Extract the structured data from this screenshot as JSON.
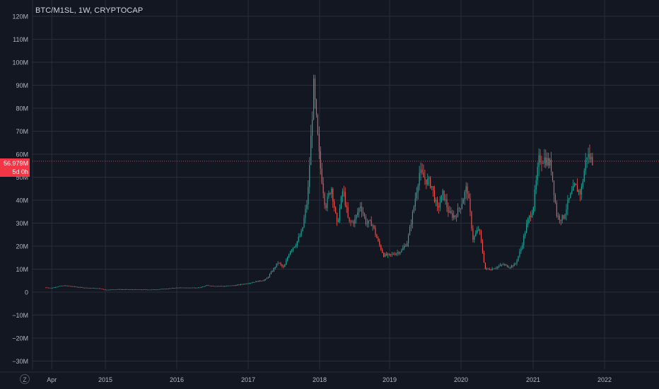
{
  "header": {
    "title": "BTC/M1SL, 1W, CRYPTOCAP"
  },
  "price_tag": {
    "value": "56.979M",
    "countdown": "5d 0h",
    "color": "#f23645"
  },
  "timezone_icon": {
    "label": "Z"
  },
  "colors": {
    "background": "#131722",
    "grid": "#2a2e39",
    "text": "#b2b5be",
    "up": "#26a69a",
    "down": "#ef5350",
    "price_line": "#f23645"
  },
  "chart_data": {
    "type": "candlestick",
    "title": "BTC/M1SL, 1W, CRYPTOCAP",
    "y_unit": "M",
    "ylim": [
      -32,
      122
    ],
    "y_ticks": [
      120,
      110,
      100,
      90,
      80,
      70,
      60,
      50,
      40,
      30,
      20,
      10,
      0,
      -10,
      -20,
      -30
    ],
    "y_tick_labels": [
      "120M",
      "110M",
      "100M",
      "90M",
      "80M",
      "70M",
      "60M",
      "50M",
      "40M",
      "30M",
      "20M",
      "10M",
      "0",
      "−10M",
      "−20M",
      "−30M"
    ],
    "x_tick_labels": [
      "Apr",
      "2015",
      "2016",
      "2017",
      "2018",
      "2019",
      "2020",
      "2021",
      "2022"
    ],
    "x_tick_dates": [
      "2014-04",
      "2015-01",
      "2016-01",
      "2017-01",
      "2018-01",
      "2019-01",
      "2020-01",
      "2021-01",
      "2022-01"
    ],
    "grid": true,
    "last_value": 56.979,
    "price_series": [
      [
        "2014-03",
        2.0
      ],
      [
        "2014-04",
        1.8
      ],
      [
        "2014-05",
        2.5
      ],
      [
        "2014-06",
        2.8
      ],
      [
        "2014-07",
        2.6
      ],
      [
        "2014-08",
        2.3
      ],
      [
        "2014-09",
        2.0
      ],
      [
        "2014-10",
        1.8
      ],
      [
        "2014-11",
        1.7
      ],
      [
        "2014-12",
        1.6
      ],
      [
        "2015-01",
        1.0
      ],
      [
        "2015-03",
        1.2
      ],
      [
        "2015-06",
        1.1
      ],
      [
        "2015-09",
        1.1
      ],
      [
        "2015-11",
        1.4
      ],
      [
        "2016-01",
        1.9
      ],
      [
        "2016-03",
        1.9
      ],
      [
        "2016-05",
        2.0
      ],
      [
        "2016-06",
        2.9
      ],
      [
        "2016-07",
        2.7
      ],
      [
        "2016-09",
        2.6
      ],
      [
        "2016-11",
        3.0
      ],
      [
        "2017-01",
        3.9
      ],
      [
        "2017-03",
        4.9
      ],
      [
        "2017-04",
        5.5
      ],
      [
        "2017-05",
        9.0
      ],
      [
        "2017-06",
        12.9
      ],
      [
        "2017-07",
        10.5
      ],
      [
        "2017-08",
        18.0
      ],
      [
        "2017-09",
        21.0
      ],
      [
        "2017-10",
        26.0
      ],
      [
        "2017-11",
        41.0
      ],
      [
        "2017-12",
        89.0
      ],
      [
        "2018-01",
        57.0
      ],
      [
        "2018-02",
        37.0
      ],
      [
        "2018-03",
        46.0
      ],
      [
        "2018-04",
        29.0
      ],
      [
        "2018-05",
        45.0
      ],
      [
        "2018-06",
        30.0
      ],
      [
        "2018-07",
        31.0
      ],
      [
        "2018-08",
        38.0
      ],
      [
        "2018-09",
        30.0
      ],
      [
        "2018-10",
        30.0
      ],
      [
        "2018-11",
        22.0
      ],
      [
        "2018-12",
        16.0
      ],
      [
        "2019-01",
        16.0
      ],
      [
        "2019-02",
        17.0
      ],
      [
        "2019-03",
        18.0
      ],
      [
        "2019-04",
        22.0
      ],
      [
        "2019-05",
        36.0
      ],
      [
        "2019-06",
        52.0
      ],
      [
        "2019-07",
        49.0
      ],
      [
        "2019-08",
        47.0
      ],
      [
        "2019-09",
        36.0
      ],
      [
        "2019-10",
        43.0
      ],
      [
        "2019-11",
        34.0
      ],
      [
        "2019-12",
        33.0
      ],
      [
        "2020-01",
        38.0
      ],
      [
        "2020-02",
        46.0
      ],
      [
        "2020-03",
        23.0
      ],
      [
        "2020-04",
        28.0
      ],
      [
        "2020-05",
        10.0
      ],
      [
        "2020-06",
        10.0
      ],
      [
        "2020-07",
        11.0
      ],
      [
        "2020-08",
        12.0
      ],
      [
        "2020-09",
        11.0
      ],
      [
        "2020-10",
        12.0
      ],
      [
        "2020-11",
        19.0
      ],
      [
        "2020-12",
        30.0
      ],
      [
        "2021-01",
        37.0
      ],
      [
        "2021-02",
        58.0
      ],
      [
        "2021-03",
        58.0
      ],
      [
        "2021-04",
        55.0
      ],
      [
        "2021-05",
        33.0
      ],
      [
        "2021-06",
        32.0
      ],
      [
        "2021-07",
        40.0
      ],
      [
        "2021-08",
        46.0
      ],
      [
        "2021-09",
        43.0
      ],
      [
        "2021-10",
        60.0
      ],
      [
        "2021-11",
        57.0
      ]
    ]
  }
}
